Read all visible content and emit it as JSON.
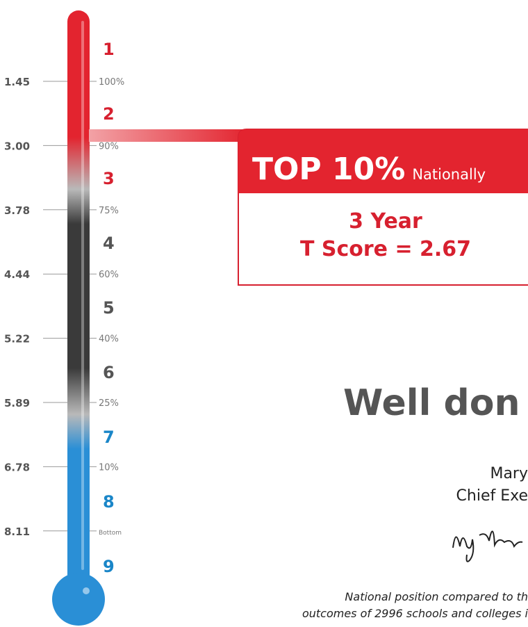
{
  "thermometer": {
    "scores": [
      "1.45",
      "3.00",
      "3.78",
      "4.44",
      "5.22",
      "5.89",
      "6.78",
      "8.11"
    ],
    "percentiles": [
      "100%",
      "90%",
      "75%",
      "60%",
      "40%",
      "25%",
      "10%",
      "Bottom"
    ],
    "bands": [
      "1",
      "2",
      "3",
      "4",
      "5",
      "6",
      "7",
      "8",
      "9"
    ]
  },
  "callout": {
    "headline": "TOP 10%",
    "qualifier": "Nationally",
    "line1": "3 Year",
    "line2": "T Score = 2.67"
  },
  "message": "Well don",
  "signatory": {
    "name": "Mary",
    "role": "Chief Exe"
  },
  "footnote": [
    "National position compared to th",
    "outcomes of 2996 schools and colleges i"
  ]
}
